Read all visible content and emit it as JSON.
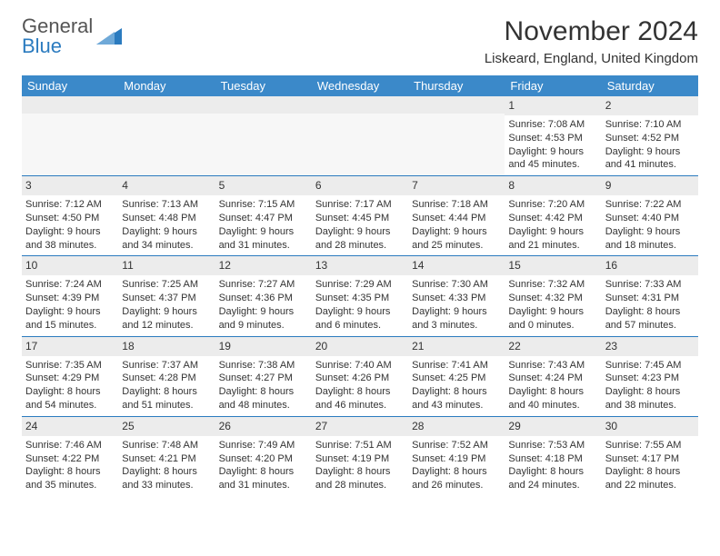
{
  "logo": {
    "text1": "General",
    "text2": "Blue",
    "shape_color": "#2b7bbf"
  },
  "title": "November 2024",
  "location": "Liskeard, England, United Kingdom",
  "header_bg": "#3b89c9",
  "divider_color": "#2b7bbf",
  "daynum_bg": "#ececec",
  "weekdays": [
    "Sunday",
    "Monday",
    "Tuesday",
    "Wednesday",
    "Thursday",
    "Friday",
    "Saturday"
  ],
  "weeks": [
    [
      null,
      null,
      null,
      null,
      null,
      {
        "n": "1",
        "sr": "Sunrise: 7:08 AM",
        "ss": "Sunset: 4:53 PM",
        "d1": "Daylight: 9 hours",
        "d2": "and 45 minutes."
      },
      {
        "n": "2",
        "sr": "Sunrise: 7:10 AM",
        "ss": "Sunset: 4:52 PM",
        "d1": "Daylight: 9 hours",
        "d2": "and 41 minutes."
      }
    ],
    [
      {
        "n": "3",
        "sr": "Sunrise: 7:12 AM",
        "ss": "Sunset: 4:50 PM",
        "d1": "Daylight: 9 hours",
        "d2": "and 38 minutes."
      },
      {
        "n": "4",
        "sr": "Sunrise: 7:13 AM",
        "ss": "Sunset: 4:48 PM",
        "d1": "Daylight: 9 hours",
        "d2": "and 34 minutes."
      },
      {
        "n": "5",
        "sr": "Sunrise: 7:15 AM",
        "ss": "Sunset: 4:47 PM",
        "d1": "Daylight: 9 hours",
        "d2": "and 31 minutes."
      },
      {
        "n": "6",
        "sr": "Sunrise: 7:17 AM",
        "ss": "Sunset: 4:45 PM",
        "d1": "Daylight: 9 hours",
        "d2": "and 28 minutes."
      },
      {
        "n": "7",
        "sr": "Sunrise: 7:18 AM",
        "ss": "Sunset: 4:44 PM",
        "d1": "Daylight: 9 hours",
        "d2": "and 25 minutes."
      },
      {
        "n": "8",
        "sr": "Sunrise: 7:20 AM",
        "ss": "Sunset: 4:42 PM",
        "d1": "Daylight: 9 hours",
        "d2": "and 21 minutes."
      },
      {
        "n": "9",
        "sr": "Sunrise: 7:22 AM",
        "ss": "Sunset: 4:40 PM",
        "d1": "Daylight: 9 hours",
        "d2": "and 18 minutes."
      }
    ],
    [
      {
        "n": "10",
        "sr": "Sunrise: 7:24 AM",
        "ss": "Sunset: 4:39 PM",
        "d1": "Daylight: 9 hours",
        "d2": "and 15 minutes."
      },
      {
        "n": "11",
        "sr": "Sunrise: 7:25 AM",
        "ss": "Sunset: 4:37 PM",
        "d1": "Daylight: 9 hours",
        "d2": "and 12 minutes."
      },
      {
        "n": "12",
        "sr": "Sunrise: 7:27 AM",
        "ss": "Sunset: 4:36 PM",
        "d1": "Daylight: 9 hours",
        "d2": "and 9 minutes."
      },
      {
        "n": "13",
        "sr": "Sunrise: 7:29 AM",
        "ss": "Sunset: 4:35 PM",
        "d1": "Daylight: 9 hours",
        "d2": "and 6 minutes."
      },
      {
        "n": "14",
        "sr": "Sunrise: 7:30 AM",
        "ss": "Sunset: 4:33 PM",
        "d1": "Daylight: 9 hours",
        "d2": "and 3 minutes."
      },
      {
        "n": "15",
        "sr": "Sunrise: 7:32 AM",
        "ss": "Sunset: 4:32 PM",
        "d1": "Daylight: 9 hours",
        "d2": "and 0 minutes."
      },
      {
        "n": "16",
        "sr": "Sunrise: 7:33 AM",
        "ss": "Sunset: 4:31 PM",
        "d1": "Daylight: 8 hours",
        "d2": "and 57 minutes."
      }
    ],
    [
      {
        "n": "17",
        "sr": "Sunrise: 7:35 AM",
        "ss": "Sunset: 4:29 PM",
        "d1": "Daylight: 8 hours",
        "d2": "and 54 minutes."
      },
      {
        "n": "18",
        "sr": "Sunrise: 7:37 AM",
        "ss": "Sunset: 4:28 PM",
        "d1": "Daylight: 8 hours",
        "d2": "and 51 minutes."
      },
      {
        "n": "19",
        "sr": "Sunrise: 7:38 AM",
        "ss": "Sunset: 4:27 PM",
        "d1": "Daylight: 8 hours",
        "d2": "and 48 minutes."
      },
      {
        "n": "20",
        "sr": "Sunrise: 7:40 AM",
        "ss": "Sunset: 4:26 PM",
        "d1": "Daylight: 8 hours",
        "d2": "and 46 minutes."
      },
      {
        "n": "21",
        "sr": "Sunrise: 7:41 AM",
        "ss": "Sunset: 4:25 PM",
        "d1": "Daylight: 8 hours",
        "d2": "and 43 minutes."
      },
      {
        "n": "22",
        "sr": "Sunrise: 7:43 AM",
        "ss": "Sunset: 4:24 PM",
        "d1": "Daylight: 8 hours",
        "d2": "and 40 minutes."
      },
      {
        "n": "23",
        "sr": "Sunrise: 7:45 AM",
        "ss": "Sunset: 4:23 PM",
        "d1": "Daylight: 8 hours",
        "d2": "and 38 minutes."
      }
    ],
    [
      {
        "n": "24",
        "sr": "Sunrise: 7:46 AM",
        "ss": "Sunset: 4:22 PM",
        "d1": "Daylight: 8 hours",
        "d2": "and 35 minutes."
      },
      {
        "n": "25",
        "sr": "Sunrise: 7:48 AM",
        "ss": "Sunset: 4:21 PM",
        "d1": "Daylight: 8 hours",
        "d2": "and 33 minutes."
      },
      {
        "n": "26",
        "sr": "Sunrise: 7:49 AM",
        "ss": "Sunset: 4:20 PM",
        "d1": "Daylight: 8 hours",
        "d2": "and 31 minutes."
      },
      {
        "n": "27",
        "sr": "Sunrise: 7:51 AM",
        "ss": "Sunset: 4:19 PM",
        "d1": "Daylight: 8 hours",
        "d2": "and 28 minutes."
      },
      {
        "n": "28",
        "sr": "Sunrise: 7:52 AM",
        "ss": "Sunset: 4:19 PM",
        "d1": "Daylight: 8 hours",
        "d2": "and 26 minutes."
      },
      {
        "n": "29",
        "sr": "Sunrise: 7:53 AM",
        "ss": "Sunset: 4:18 PM",
        "d1": "Daylight: 8 hours",
        "d2": "and 24 minutes."
      },
      {
        "n": "30",
        "sr": "Sunrise: 7:55 AM",
        "ss": "Sunset: 4:17 PM",
        "d1": "Daylight: 8 hours",
        "d2": "and 22 minutes."
      }
    ]
  ]
}
